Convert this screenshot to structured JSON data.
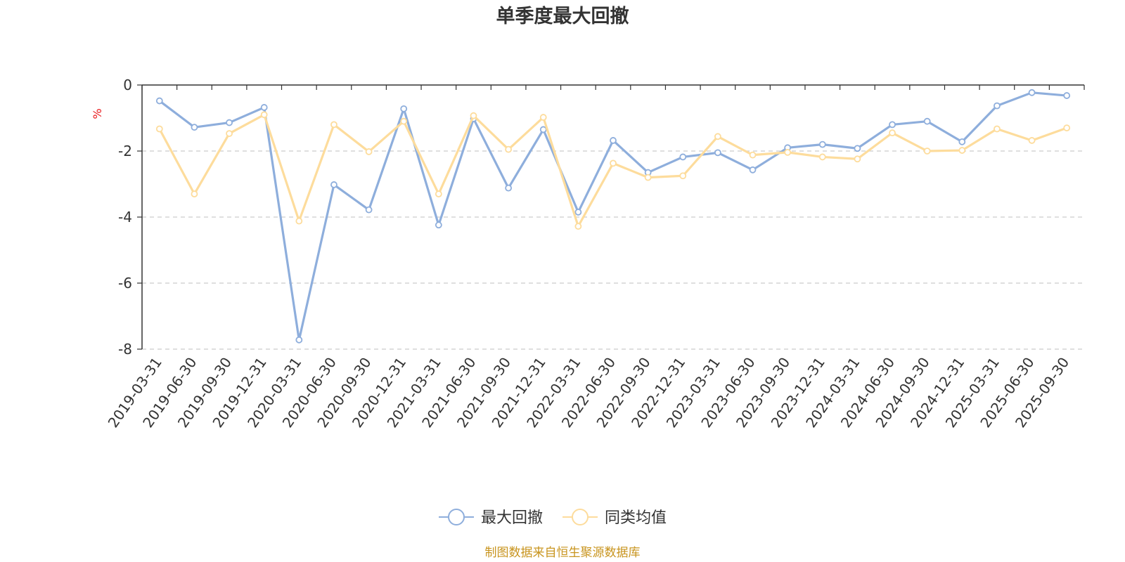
{
  "chart_data": {
    "type": "line",
    "title": "单季度最大回撤",
    "ylabel": "%",
    "ylim": [
      -8,
      0
    ],
    "yticks": [
      0,
      -2,
      -4,
      -6,
      -8
    ],
    "categories": [
      "2019-03-31",
      "2019-06-30",
      "2019-09-30",
      "2019-12-31",
      "2020-03-31",
      "2020-06-30",
      "2020-09-30",
      "2020-12-31",
      "2021-03-31",
      "2021-06-30",
      "2021-09-30",
      "2021-12-31",
      "2022-03-31",
      "2022-06-30",
      "2022-09-30",
      "2022-12-31",
      "2023-03-31",
      "2023-06-30",
      "2023-09-30",
      "2023-12-31",
      "2024-03-31",
      "2024-06-30",
      "2024-09-30",
      "2024-12-31",
      "2025-03-31",
      "2025-06-30",
      "2025-09-30"
    ],
    "series": [
      {
        "name": "最大回撤",
        "color": "#8eaedc",
        "values": [
          -0.48,
          -1.28,
          -1.14,
          -0.68,
          -7.72,
          -3.02,
          -3.78,
          -0.72,
          -4.24,
          -1.02,
          -3.12,
          -1.35,
          -3.85,
          -1.68,
          -2.65,
          -2.18,
          -2.05,
          -2.57,
          -1.9,
          -1.8,
          -1.92,
          -1.2,
          -1.1,
          -1.72,
          -0.63,
          -0.23,
          -0.32
        ]
      },
      {
        "name": "同类均值",
        "color": "#fddc9c",
        "values": [
          -1.33,
          -3.3,
          -1.47,
          -0.9,
          -4.12,
          -1.2,
          -2.02,
          -1.1,
          -3.3,
          -0.93,
          -1.95,
          -0.98,
          -4.28,
          -2.37,
          -2.8,
          -2.75,
          -1.56,
          -2.12,
          -2.04,
          -2.18,
          -2.24,
          -1.45,
          -2.0,
          -1.98,
          -1.33,
          -1.68,
          -1.3
        ]
      }
    ],
    "legend": "bottom",
    "grid": true
  },
  "unit_color": "#e8191c",
  "source_text": "制图数据来自恒生聚源数据库",
  "source_color": "#c8941e",
  "axis_color": "#333333",
  "grid_color": "#cccccc"
}
